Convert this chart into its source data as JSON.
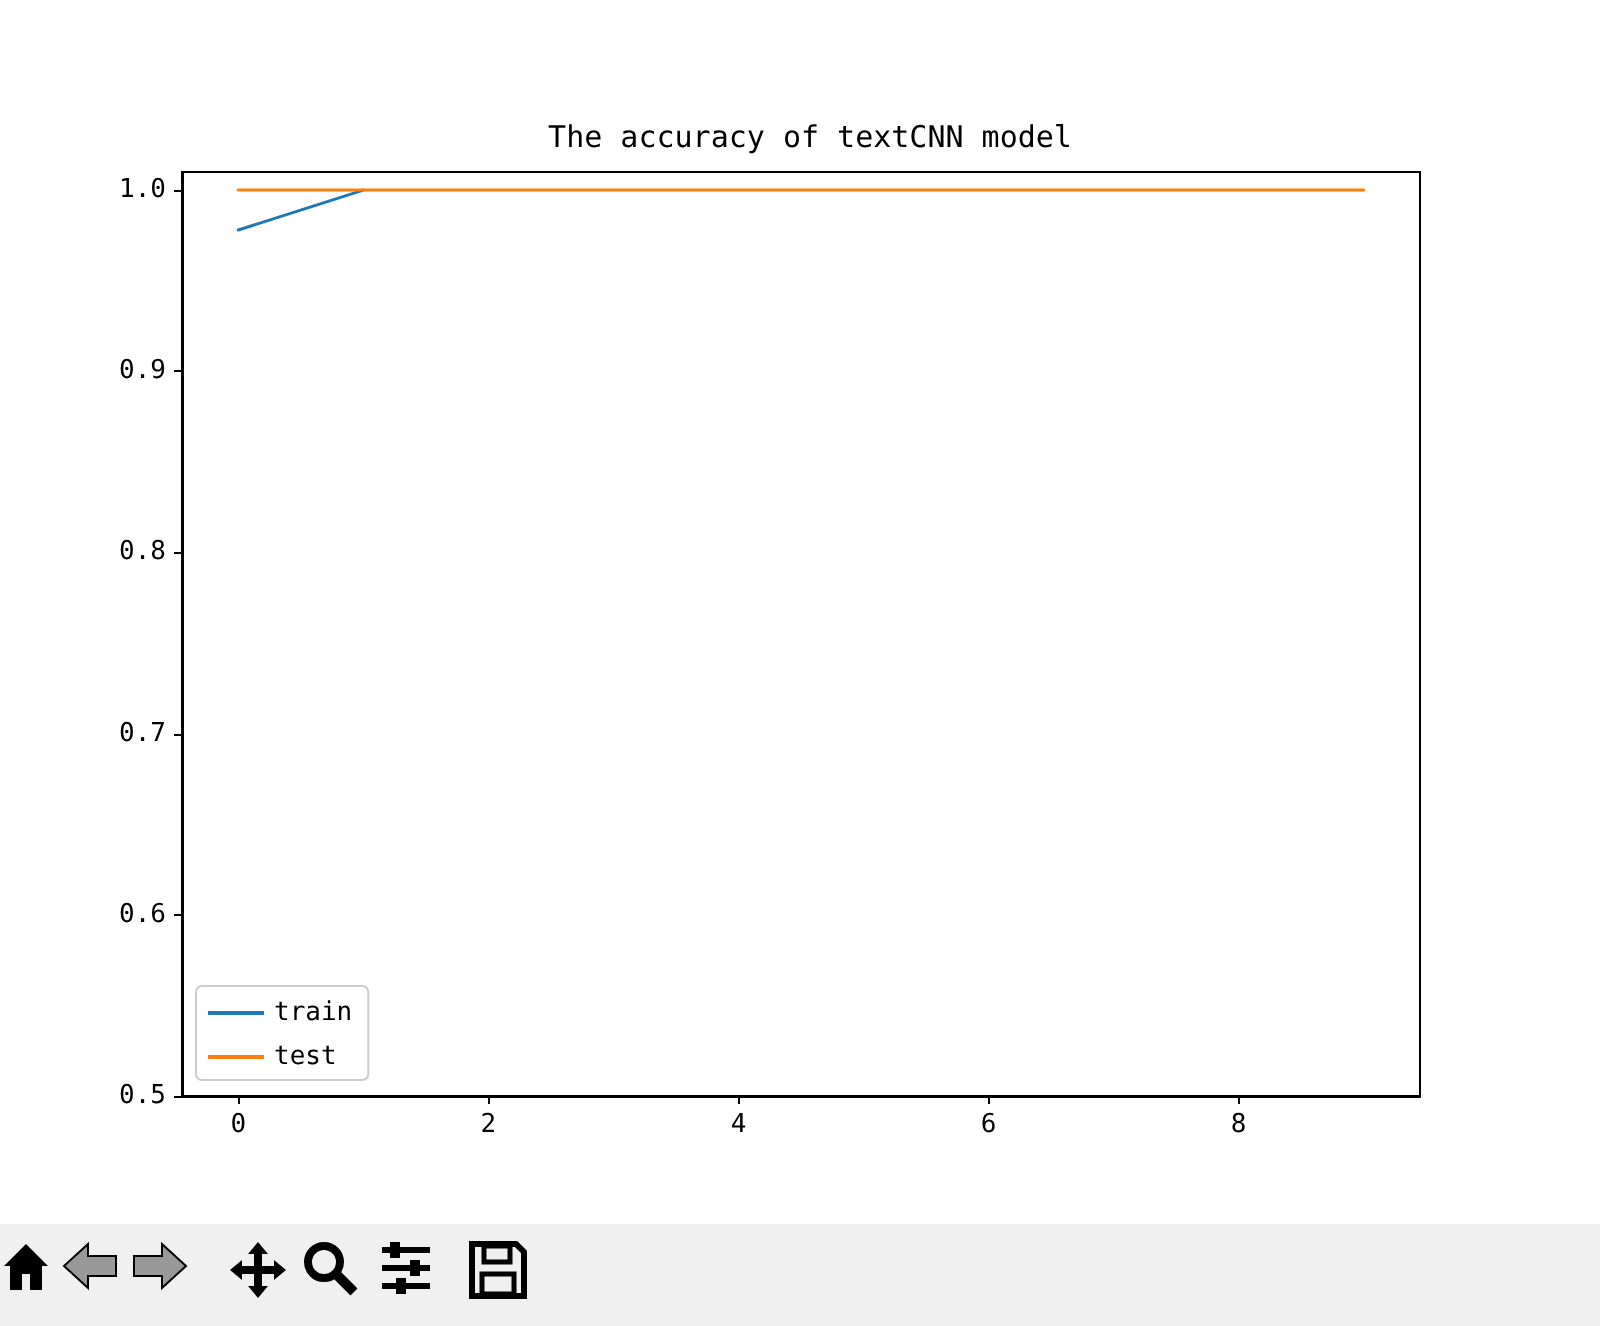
{
  "chart_data": {
    "type": "line",
    "title": "The accuracy of textCNN model",
    "x": [
      0,
      1,
      2,
      3,
      4,
      5,
      6,
      7,
      8,
      9
    ],
    "series": [
      {
        "name": "train",
        "color": "#1f77b4",
        "values": [
          0.978,
          1.0,
          null,
          null,
          null,
          null,
          null,
          null,
          null,
          null
        ]
      },
      {
        "name": "test",
        "color": "#ff7f0e",
        "values": [
          1.0,
          1.0,
          1.0,
          1.0,
          1.0,
          1.0,
          1.0,
          1.0,
          1.0,
          1.0
        ]
      }
    ],
    "xlim": [
      -0.45,
      9.45
    ],
    "xticks": [
      0,
      2,
      4,
      6,
      8
    ],
    "ylim": [
      0.5,
      1.01
    ],
    "yticks": [
      {
        "value": 0.5,
        "label": "0.5"
      },
      {
        "value": 0.6,
        "label": "0.6"
      },
      {
        "value": 0.7,
        "label": "0.7"
      },
      {
        "value": 0.8,
        "label": "0.8"
      },
      {
        "value": 0.9,
        "label": "0.9"
      },
      {
        "value": 1.0,
        "label": "1.0"
      }
    ],
    "grid": false,
    "legend": "bottom left",
    "marker": "none",
    "line_style": "solid"
  }
}
